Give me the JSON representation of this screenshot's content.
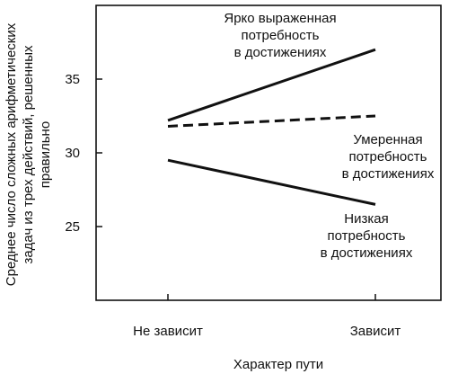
{
  "chart_data": {
    "type": "line",
    "title": "",
    "xlabel": "Характер пути",
    "ylabel": [
      "Среднее число сложных арифметических",
      "задач из трех действий, решенных",
      "правильно"
    ],
    "categories": [
      "Не зависит",
      "Зависит"
    ],
    "ylim": [
      20,
      40
    ],
    "yticks": [
      25,
      30,
      35
    ],
    "grid": false,
    "legend": "none",
    "series": [
      {
        "values": [
          32.2,
          37.0
        ],
        "style": "solid",
        "annotation": [
          "Ярко выраженная",
          "потребность",
          "в достижениях"
        ]
      },
      {
        "values": [
          31.8,
          32.5
        ],
        "style": "dashed",
        "annotation": [
          "Умеренная",
          "потребность",
          "в достижениях"
        ]
      },
      {
        "values": [
          29.5,
          26.5
        ],
        "style": "solid",
        "annotation": [
          "Низкая",
          "потребность",
          "в достижениях"
        ]
      }
    ],
    "colors": {
      "line": "#111111",
      "axis": "#111111"
    }
  }
}
